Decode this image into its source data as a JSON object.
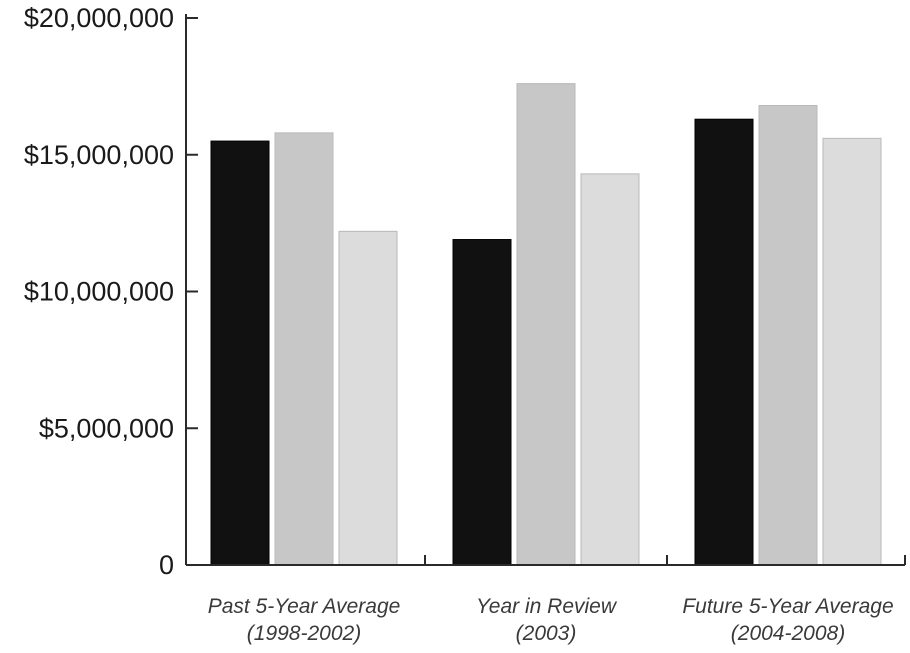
{
  "chart_data": {
    "type": "bar",
    "title": "",
    "xlabel": "",
    "ylabel": "",
    "ylim": [
      0,
      20000000
    ],
    "yticks": [
      0,
      5000000,
      10000000,
      15000000,
      20000000
    ],
    "ytick_labels": [
      "0",
      "$5,000,000",
      "$10,000,000",
      "$15,000,000",
      "$20,000,000"
    ],
    "categories": [
      [
        "Past 5-Year Average",
        "(1998-2002)"
      ],
      [
        "Year in Review",
        "(2003)"
      ],
      [
        "Future 5-Year Average",
        "(2004-2008)"
      ]
    ],
    "series": [
      {
        "values": [
          15500000,
          11900000,
          16300000
        ],
        "color": "#111111"
      },
      {
        "values": [
          15800000,
          17600000,
          16800000
        ],
        "color": "#c7c7c7"
      },
      {
        "values": [
          12200000,
          14300000,
          15600000
        ],
        "color": "#dcdcdc"
      }
    ],
    "grid": false,
    "legend": "none"
  }
}
